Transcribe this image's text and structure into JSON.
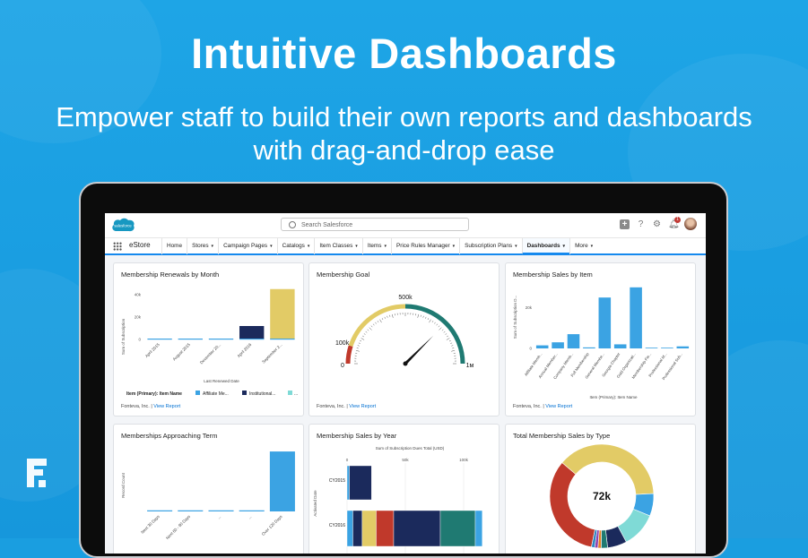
{
  "hero": {
    "title": "Intuitive Dashboards",
    "subtitle_line1": "Empower staff to build their own reports and dashboards",
    "subtitle_line2": "with drag-and-drop ease"
  },
  "header": {
    "logo_text": "salesforce",
    "search_placeholder": "Search Salesforce",
    "notification_count": "1"
  },
  "nav": {
    "app_name": "eStore",
    "items": [
      {
        "label": "Home",
        "caret": ""
      },
      {
        "label": "Stores",
        "caret": "▾"
      },
      {
        "label": "Campaign Pages",
        "caret": "▾"
      },
      {
        "label": "Catalogs",
        "caret": "▾"
      },
      {
        "label": "Item Classes",
        "caret": "▾"
      },
      {
        "label": "Items",
        "caret": "▾"
      },
      {
        "label": "Price Rules Manager",
        "caret": "▾"
      },
      {
        "label": "Subscription Plans",
        "caret": "▾"
      },
      {
        "label": "Dashboards",
        "caret": "▾"
      },
      {
        "label": "More",
        "caret": "▾"
      }
    ]
  },
  "footer": {
    "company": "Fonteva, Inc.",
    "sep": " | ",
    "link": "View Report"
  },
  "colors": {
    "blue": "#3ba3e3",
    "navy": "#1b2a5c",
    "yellow": "#e2cb66",
    "teal": "#1f7a72",
    "red": "#c0392b",
    "cyan": "#7fdad6"
  },
  "cards": {
    "renewals": {
      "title": "Membership Renewals by Month",
      "xlabel": "Last Renewed Date",
      "ylabel": "Sum of Subscription",
      "legend_title": "Item (Primary): Item Name",
      "legend": [
        "Affiliate Me...",
        "Institutional...",
        "..."
      ]
    },
    "goal": {
      "title": "Membership Goal"
    },
    "sales_item": {
      "title": "Membership Sales by Item",
      "xlabel": "Item (Primary): Item Name",
      "ylabel": "Sum of Subscription D..."
    },
    "approaching": {
      "title": "Memberships Approaching Term",
      "ylabel": "Record Count"
    },
    "sales_year": {
      "title": "Membership Sales by Year",
      "xlabel": "Sum of Subscription Dues Total (USD)",
      "ylabel": "Activated Date"
    },
    "sales_type": {
      "title": "Total Membership Sales by Type",
      "center_label": "72k"
    }
  },
  "chart_data": [
    {
      "type": "bar",
      "title": "Membership Renewals by Month",
      "xlabel": "Last Renewed Date",
      "ylabel": "Sum of Subscription",
      "categories": [
        "April 2015",
        "August 2015",
        "December 20...",
        "April 2016",
        "September 2..."
      ],
      "series": [
        {
          "name": "Affiliate Me...",
          "values": [
            0,
            0,
            0,
            0,
            0
          ]
        },
        {
          "name": "Institutional...",
          "values": [
            0,
            0,
            0,
            12000,
            0
          ]
        },
        {
          "name": "...",
          "values": [
            0,
            0,
            0,
            0,
            45000
          ]
        }
      ],
      "yticks": [
        "0",
        "20k",
        "40k"
      ],
      "ylim": [
        0,
        48000
      ]
    },
    {
      "type": "gauge",
      "title": "Membership Goal",
      "labels": [
        "0",
        "100k",
        "500k",
        "1м"
      ],
      "min": 0,
      "max": 1000000,
      "value": 750000
    },
    {
      "type": "bar",
      "title": "Membership Sales by Item",
      "xlabel": "Item (Primary): Item Name",
      "ylabel": "Sum of Subscription D...",
      "categories": [
        "Affiliate Memb...",
        "Annual Member...",
        "Company Memb...",
        "Full Membership",
        "General Membe...",
        "Georgia Chapter",
        "Gold Organizati...",
        "Membership Fie...",
        "Professional M...",
        "Professional Sub..."
      ],
      "values": [
        1500,
        3000,
        7000,
        500,
        25000,
        2000,
        30000,
        0,
        0,
        1000
      ],
      "yticks": [
        "0",
        "20k"
      ],
      "ylim": [
        0,
        33000
      ]
    },
    {
      "type": "bar",
      "title": "Memberships Approaching Term",
      "ylabel": "Record Count",
      "categories": [
        "Next 30 Days",
        "Next 60 - 90 Days",
        "...",
        "...",
        "Over 120 Days"
      ],
      "values": [
        1,
        1,
        1,
        1,
        55
      ],
      "ylim": [
        0,
        60
      ]
    },
    {
      "type": "bar",
      "title": "Membership Sales by Year",
      "xlabel": "Sum of Subscription Dues Total (USD)",
      "ylabel": "Activated Date",
      "categories": [
        "CY2015",
        "CY2016"
      ],
      "xticks": [
        "0",
        "50k",
        "100k"
      ],
      "xlim": [
        0,
        160000
      ],
      "series": [
        {
          "name": "Blue",
          "values": [
            2000,
            5000
          ]
        },
        {
          "name": "Navy",
          "values": [
            19000,
            8000
          ]
        },
        {
          "name": "Yellow",
          "values": [
            0,
            12000
          ]
        },
        {
          "name": "Red",
          "values": [
            0,
            15000
          ]
        },
        {
          "name": "Navy 2",
          "values": [
            0,
            40000
          ]
        },
        {
          "name": "Teal",
          "values": [
            0,
            30000
          ]
        },
        {
          "name": "Blue 2",
          "values": [
            0,
            6000
          ]
        }
      ]
    },
    {
      "type": "pie",
      "title": "Total Membership Sales by Type",
      "center_label": "72k",
      "slices": [
        {
          "color": "#c0392b",
          "value": 33
        },
        {
          "color": "#e2cb66",
          "value": 38
        },
        {
          "color": "#3ba3e3",
          "value": 7
        },
        {
          "color": "#7fdad6",
          "value": 11
        },
        {
          "color": "#1b2a5c",
          "value": 6
        },
        {
          "color": "#1f7a72",
          "value": 2
        },
        {
          "color": "#e67e22",
          "value": 1
        },
        {
          "color": "#8e44ad",
          "value": 1
        },
        {
          "color": "#2e86c1",
          "value": 1
        }
      ]
    }
  ]
}
